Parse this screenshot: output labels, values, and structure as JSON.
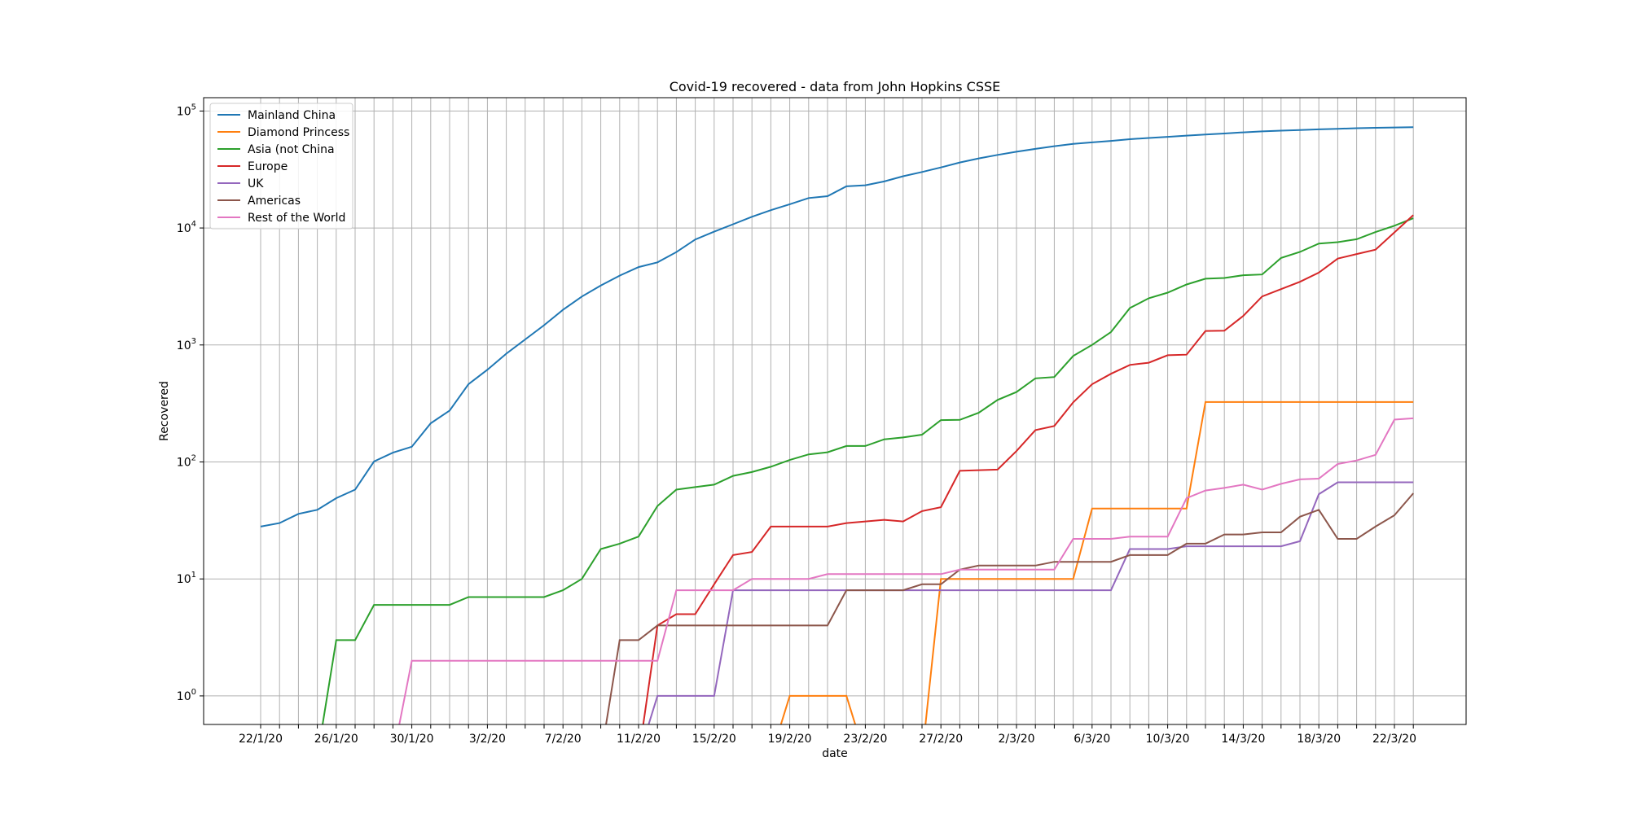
{
  "chart_data": {
    "type": "line",
    "title": "Covid-19 recovered - data from John Hopkins CSSE",
    "xlabel": "date",
    "ylabel": "Recovered",
    "yscale": "log",
    "ylim": [
      0.57,
      130000
    ],
    "yticks": [
      1,
      10,
      100,
      1000,
      10000,
      100000
    ],
    "ytick_labels": [
      {
        "base": "10",
        "exp": "0"
      },
      {
        "base": "10",
        "exp": "1"
      },
      {
        "base": "10",
        "exp": "2"
      },
      {
        "base": "10",
        "exp": "3"
      },
      {
        "base": "10",
        "exp": "4"
      },
      {
        "base": "10",
        "exp": "5"
      }
    ],
    "grid": true,
    "legend_position": "top-left",
    "x": [
      "22/1/20",
      "23/1/20",
      "24/1/20",
      "25/1/20",
      "26/1/20",
      "27/1/20",
      "28/1/20",
      "29/1/20",
      "30/1/20",
      "31/1/20",
      "1/2/20",
      "2/2/20",
      "3/2/20",
      "4/2/20",
      "5/2/20",
      "6/2/20",
      "7/2/20",
      "8/2/20",
      "9/2/20",
      "10/2/20",
      "11/2/20",
      "12/2/20",
      "13/2/20",
      "14/2/20",
      "15/2/20",
      "16/2/20",
      "17/2/20",
      "18/2/20",
      "19/2/20",
      "20/2/20",
      "21/2/20",
      "22/2/20",
      "23/2/20",
      "24/2/20",
      "25/2/20",
      "26/2/20",
      "27/2/20",
      "28/2/20",
      "29/2/20",
      "1/3/20",
      "2/3/20",
      "3/3/20",
      "4/3/20",
      "5/3/20",
      "6/3/20",
      "7/3/20",
      "8/3/20",
      "9/3/20",
      "10/3/20",
      "11/3/20",
      "12/3/20",
      "13/3/20",
      "14/3/20",
      "15/3/20",
      "16/3/20",
      "17/3/20",
      "18/3/20",
      "19/3/20",
      "20/3/20",
      "21/3/20",
      "22/3/20",
      "23/3/20"
    ],
    "x_tick_labels": [
      "22/1/20",
      "26/1/20",
      "30/1/20",
      "3/2/20",
      "7/2/20",
      "11/2/20",
      "15/2/20",
      "19/2/20",
      "23/2/20",
      "27/2/20",
      "2/3/20",
      "6/3/20",
      "10/3/20",
      "14/3/20",
      "18/3/20",
      "22/3/20"
    ],
    "series": [
      {
        "name": "Mainland China",
        "color": "#1f77b4",
        "values": [
          28,
          30,
          36,
          39,
          49,
          58,
          101,
          120,
          135,
          214,
          275,
          463,
          614,
          843,
          1115,
          1476,
          1998,
          2595,
          3218,
          3918,
          4636,
          5082,
          6217,
          7977,
          9298,
          10755,
          12462,
          14206,
          15962,
          18014,
          18704,
          22699,
          23187,
          25015,
          27676,
          30084,
          32930,
          36329,
          39320,
          42162,
          44854,
          47450,
          50001,
          52292,
          53944,
          55539,
          57388,
          58804,
          60181,
          61644,
          62901,
          64196,
          65660,
          67017,
          67910,
          68798,
          69755,
          70535,
          71266,
          71857,
          72362,
          72814
        ]
      },
      {
        "name": "Diamond Princess",
        "color": "#ff7f0e",
        "values": [
          0,
          0,
          0,
          0,
          0,
          0,
          0,
          0,
          0,
          0,
          0,
          0,
          0,
          0,
          0,
          0,
          0,
          0,
          0,
          0,
          0,
          0,
          0,
          0,
          0,
          0,
          0,
          0,
          1,
          1,
          1,
          1,
          0,
          0,
          0,
          0,
          10,
          10,
          10,
          10,
          10,
          10,
          10,
          10,
          40,
          40,
          40,
          40,
          40,
          40,
          325,
          325,
          325,
          325,
          325,
          325,
          325,
          325,
          325,
          325,
          325,
          325
        ]
      },
      {
        "name": "Asia (not China",
        "color": "#2ca02c",
        "values": [
          0,
          0,
          0,
          0,
          3,
          3,
          6,
          6,
          6,
          6,
          6,
          7,
          7,
          7,
          7,
          7,
          8,
          10,
          18,
          20,
          23,
          42,
          58,
          61,
          64,
          76,
          82,
          91,
          104,
          116,
          121,
          137,
          137,
          156,
          162,
          171,
          228,
          229,
          263,
          339,
          396,
          518,
          532,
          806,
          1001,
          1289,
          2069,
          2510,
          2800,
          3287,
          3687,
          3738,
          3947,
          4002,
          5542,
          6238,
          7357,
          7568,
          8012,
          9227,
          10463,
          12124
        ]
      },
      {
        "name": "Europe",
        "color": "#d62728",
        "values": [
          0,
          0,
          0,
          0,
          0,
          0,
          0,
          0,
          0,
          0,
          0,
          0,
          0,
          0,
          0,
          0,
          0,
          0,
          0,
          0,
          0,
          4,
          5,
          5,
          9,
          16,
          17,
          28,
          28,
          28,
          28,
          30,
          31,
          32,
          31,
          38,
          41,
          84,
          85,
          86,
          124,
          187,
          203,
          323,
          462,
          567,
          675,
          705,
          817,
          826,
          1317,
          1324,
          1772,
          2600,
          3001,
          3466,
          4154,
          5476,
          5986,
          6524,
          9167,
          12883
        ]
      },
      {
        "name": "UK",
        "color": "#9467bd",
        "values": [
          0,
          0,
          0,
          0,
          0,
          0,
          0,
          0,
          0,
          0,
          0,
          0,
          0,
          0,
          0,
          0,
          0,
          0,
          0,
          0,
          0,
          1,
          1,
          1,
          1,
          8,
          8,
          8,
          8,
          8,
          8,
          8,
          8,
          8,
          8,
          8,
          8,
          8,
          8,
          8,
          8,
          8,
          8,
          8,
          8,
          8,
          18,
          18,
          18,
          19,
          19,
          19,
          19,
          19,
          19,
          21,
          53,
          67,
          67,
          67,
          67,
          67
        ]
      },
      {
        "name": "Americas",
        "color": "#8c564b",
        "values": [
          0,
          0,
          0,
          0,
          0,
          0,
          0,
          0,
          0,
          0,
          0,
          0,
          0,
          0,
          0,
          0,
          0,
          0,
          0,
          3,
          3,
          4,
          4,
          4,
          4,
          4,
          4,
          4,
          4,
          4,
          4,
          8,
          8,
          8,
          8,
          9,
          9,
          12,
          13,
          13,
          13,
          13,
          14,
          14,
          14,
          14,
          16,
          16,
          16,
          20,
          20,
          24,
          24,
          25,
          25,
          34,
          39,
          22,
          22,
          28,
          35,
          54
        ]
      },
      {
        "name": "Rest of the World",
        "color": "#e377c2",
        "values": [
          0,
          0,
          0,
          0,
          0,
          0,
          0,
          0,
          2,
          2,
          2,
          2,
          2,
          2,
          2,
          2,
          2,
          2,
          2,
          2,
          2,
          2,
          8,
          8,
          8,
          8,
          10,
          10,
          10,
          10,
          11,
          11,
          11,
          11,
          11,
          11,
          11,
          12,
          12,
          12,
          12,
          12,
          12,
          22,
          22,
          22,
          23,
          23,
          23,
          49,
          57,
          60,
          64,
          58,
          65,
          71,
          72,
          96,
          103,
          115,
          230,
          236
        ]
      }
    ]
  }
}
